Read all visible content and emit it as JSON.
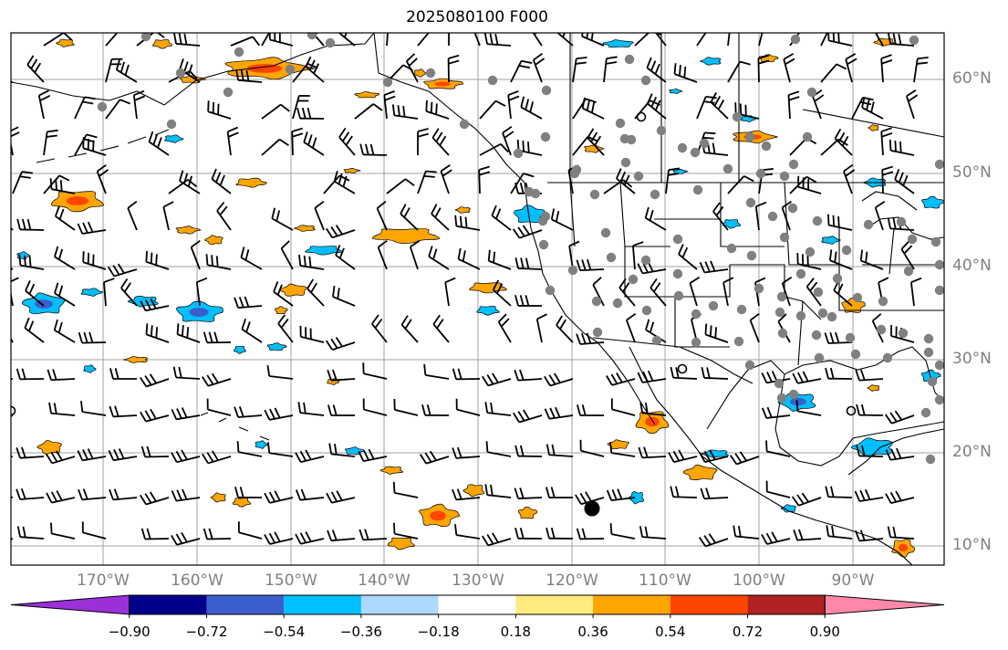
{
  "title": "2025080100 F000",
  "lon_labels": [
    "170°W",
    "160°W",
    "150°W",
    "140°W",
    "130°W",
    "120°W",
    "110°W",
    "100°W",
    "90°W"
  ],
  "lat_labels": [
    "60°N",
    "50°N",
    "40°N",
    "30°N",
    "20°N",
    "10°N"
  ],
  "colorbar": {
    "ticks": [
      "−0.90",
      "−0.72",
      "−0.54",
      "−0.36",
      "−0.18",
      "0.18",
      "0.36",
      "0.54",
      "0.72",
      "0.90"
    ],
    "colors": [
      "#9b30d9",
      "#00008b",
      "#3a5fcd",
      "#00bfff",
      "#add8ff",
      "#ffffff",
      "#ffeb80",
      "#ffa500",
      "#ff4500",
      "#b22222",
      "#ff88aa"
    ]
  },
  "colors": {
    "land_outline": "#000000",
    "grid": "#a0a0a0",
    "station": "#808080",
    "positive": "#ffa500",
    "negative": "#00bfff"
  }
}
